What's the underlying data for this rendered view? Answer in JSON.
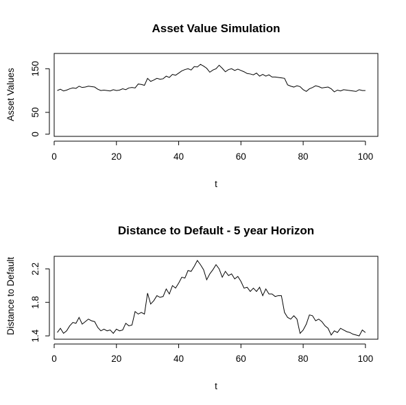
{
  "chart_data": [
    {
      "type": "line",
      "title": "Asset Value Simulation",
      "xlabel": "t",
      "ylabel": "Asset Values",
      "xlim": [
        0,
        104
      ],
      "ylim": [
        -5,
        185
      ],
      "xticks": [
        0,
        20,
        40,
        60,
        80,
        100
      ],
      "xtick_labels": [
        "0",
        "20",
        "40",
        "60",
        "80",
        "100"
      ],
      "yticks": [
        0,
        50,
        150
      ],
      "ytick_labels": [
        "0",
        "50",
        "150"
      ],
      "grid": false,
      "series": [
        {
          "x": [
            1,
            2,
            3,
            4,
            5,
            6,
            7,
            8,
            9,
            10,
            11,
            12,
            13,
            14,
            15,
            16,
            17,
            18,
            19,
            20,
            21,
            22,
            23,
            24,
            25,
            26,
            27,
            28,
            29,
            30,
            31,
            32,
            33,
            34,
            35,
            36,
            37,
            38,
            39,
            40,
            41,
            42,
            43,
            44,
            45,
            46,
            47,
            48,
            49,
            50,
            51,
            52,
            53,
            54,
            55,
            56,
            57,
            58,
            59,
            60,
            61,
            62,
            63,
            64,
            65,
            66,
            67,
            68,
            69,
            70,
            71,
            72,
            73,
            74,
            75,
            76,
            77,
            78,
            79,
            80,
            81,
            82,
            83,
            84,
            85,
            86,
            87,
            88,
            89,
            90,
            91,
            92,
            93,
            94,
            95,
            96,
            97,
            98,
            99,
            100
          ],
          "values": [
            100,
            103,
            99,
            101,
            104,
            106,
            105,
            110,
            107,
            108,
            110,
            109,
            108,
            103,
            100,
            101,
            100,
            99,
            102,
            100,
            101,
            104,
            102,
            106,
            107,
            106,
            115,
            114,
            112,
            128,
            121,
            124,
            128,
            126,
            127,
            133,
            130,
            137,
            135,
            140,
            145,
            148,
            150,
            147,
            155,
            154,
            160,
            156,
            151,
            142,
            147,
            150,
            158,
            151,
            143,
            148,
            150,
            146,
            149,
            146,
            143,
            139,
            138,
            136,
            140,
            133,
            137,
            133,
            136,
            131,
            131,
            130,
            129,
            128,
            113,
            110,
            108,
            111,
            109,
            102,
            98,
            104,
            107,
            111,
            109,
            106,
            107,
            108,
            104,
            97,
            101,
            99,
            102,
            101,
            100,
            99,
            98,
            102,
            100,
            100
          ]
        }
      ]
    },
    {
      "type": "line",
      "title": "Distance to Default - 5 year Horizon",
      "xlabel": "t",
      "ylabel": "Distance to Default",
      "xlim": [
        0,
        104
      ],
      "ylim": [
        1.36,
        2.35
      ],
      "xticks": [
        0,
        20,
        40,
        60,
        80,
        100
      ],
      "xtick_labels": [
        "0",
        "20",
        "40",
        "60",
        "80",
        "100"
      ],
      "yticks": [
        1.4,
        1.8,
        2.2
      ],
      "ytick_labels": [
        "1.4",
        "1.8",
        "2.2"
      ],
      "grid": false,
      "series": [
        {
          "x": [
            1,
            2,
            3,
            4,
            5,
            6,
            7,
            8,
            9,
            10,
            11,
            12,
            13,
            14,
            15,
            16,
            17,
            18,
            19,
            20,
            21,
            22,
            23,
            24,
            25,
            26,
            27,
            28,
            29,
            30,
            31,
            32,
            33,
            34,
            35,
            36,
            37,
            38,
            39,
            40,
            41,
            42,
            43,
            44,
            45,
            46,
            47,
            48,
            49,
            50,
            51,
            52,
            53,
            54,
            55,
            56,
            57,
            58,
            59,
            60,
            61,
            62,
            63,
            64,
            65,
            66,
            67,
            68,
            69,
            70,
            71,
            72,
            73,
            74,
            75,
            76,
            77,
            78,
            79,
            80,
            81,
            82,
            83,
            84,
            85,
            86,
            87,
            88,
            89,
            90,
            91,
            92,
            93,
            94,
            95,
            96,
            97,
            98,
            99,
            100
          ],
          "values": [
            1.44,
            1.49,
            1.43,
            1.46,
            1.52,
            1.56,
            1.55,
            1.62,
            1.54,
            1.57,
            1.6,
            1.58,
            1.57,
            1.5,
            1.46,
            1.48,
            1.46,
            1.47,
            1.43,
            1.48,
            1.46,
            1.47,
            1.55,
            1.52,
            1.53,
            1.69,
            1.66,
            1.68,
            1.66,
            1.91,
            1.78,
            1.82,
            1.88,
            1.86,
            1.87,
            1.96,
            1.9,
            2.0,
            1.97,
            2.03,
            2.1,
            2.09,
            2.18,
            2.17,
            2.23,
            2.3,
            2.25,
            2.19,
            2.07,
            2.14,
            2.19,
            2.25,
            2.2,
            2.1,
            2.17,
            2.12,
            2.14,
            2.08,
            2.11,
            2.05,
            1.97,
            1.98,
            1.93,
            1.97,
            1.93,
            1.98,
            1.88,
            1.96,
            1.9,
            1.9,
            1.87,
            1.88,
            1.88,
            1.68,
            1.62,
            1.6,
            1.64,
            1.6,
            1.43,
            1.47,
            1.54,
            1.65,
            1.64,
            1.58,
            1.6,
            1.57,
            1.52,
            1.49,
            1.41,
            1.46,
            1.44,
            1.49,
            1.47,
            1.45,
            1.44,
            1.42,
            1.41,
            1.4,
            1.47,
            1.44
          ]
        }
      ]
    }
  ]
}
